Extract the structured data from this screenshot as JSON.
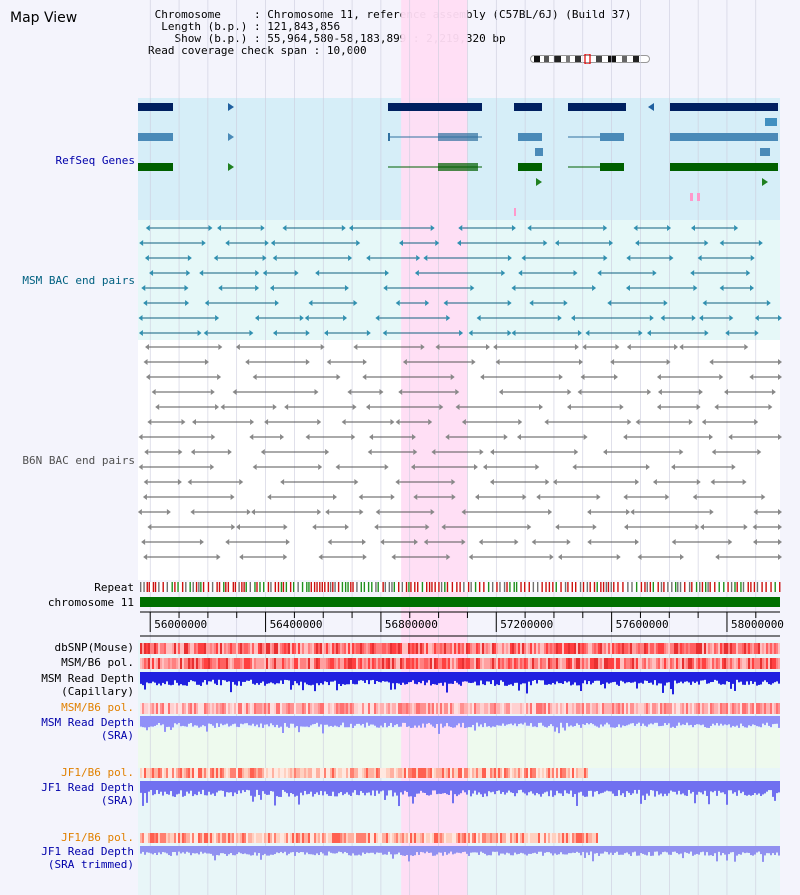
{
  "title": "Map View",
  "header": {
    "chromosome_key": "Chromosome",
    "chromosome_value": "Chromosome 11, reference assembly (C57BL/6J) (Build 37)",
    "length_key": "Length (b.p.)",
    "length_value": "121,843,856",
    "show_key": "Show (b.p.)",
    "show_value": "55,964,580-58,183,899 : 2,219,320 bp",
    "span_key": "Read coverage check span",
    "span_value": "10,000"
  },
  "tracks": {
    "refseq": "RefSeq Genes",
    "msm_bac": "MSM BAC end pairs",
    "b6n_bac": "B6N BAC end pairs",
    "repeat": "Repeat",
    "chromosome": "chromosome 11",
    "dbsnp": "dbSNP(Mouse)",
    "msm_pol_1": "MSM/B6 pol.",
    "msm_depth_cap_1": "MSM Read Depth",
    "msm_depth_cap_2": "(Capillary)",
    "msm_pol_2": "MSM/B6 pol.",
    "msm_depth_sra_1": "MSM Read Depth",
    "msm_depth_sra_2": "(SRA)",
    "jf1_pol_1": "JF1/B6 pol.",
    "jf1_depth_sra_1": "JF1 Read Depth",
    "jf1_depth_sra_2": "(SRA)",
    "jf1_pol_2": "JF1/B6 pol.",
    "jf1_depth_trim_1": "JF1 Read Depth",
    "jf1_depth_trim_2": "(SRA trimmed)"
  },
  "axis": {
    "start": 55964580,
    "end": 58183899,
    "ticks": [
      56000000,
      56400000,
      56800000,
      57200000,
      57600000,
      58000000
    ],
    "tick_labels": [
      "56000000",
      "56400000",
      "56800000",
      "57200000",
      "57600000",
      "58000000"
    ],
    "highlight_range": [
      56870000,
      57100000
    ]
  },
  "colors": {
    "refseq_label": "#0000aa",
    "msm_label": "#006080",
    "b6n_label": "#505050",
    "pol_label": "#e08000",
    "depth_label": "#0000aa",
    "highlight": "#ffddf4",
    "refseq_bg": "#d6eef8",
    "msm_bg": "#e6f8f8",
    "chrom_bar": "#007000"
  }
}
